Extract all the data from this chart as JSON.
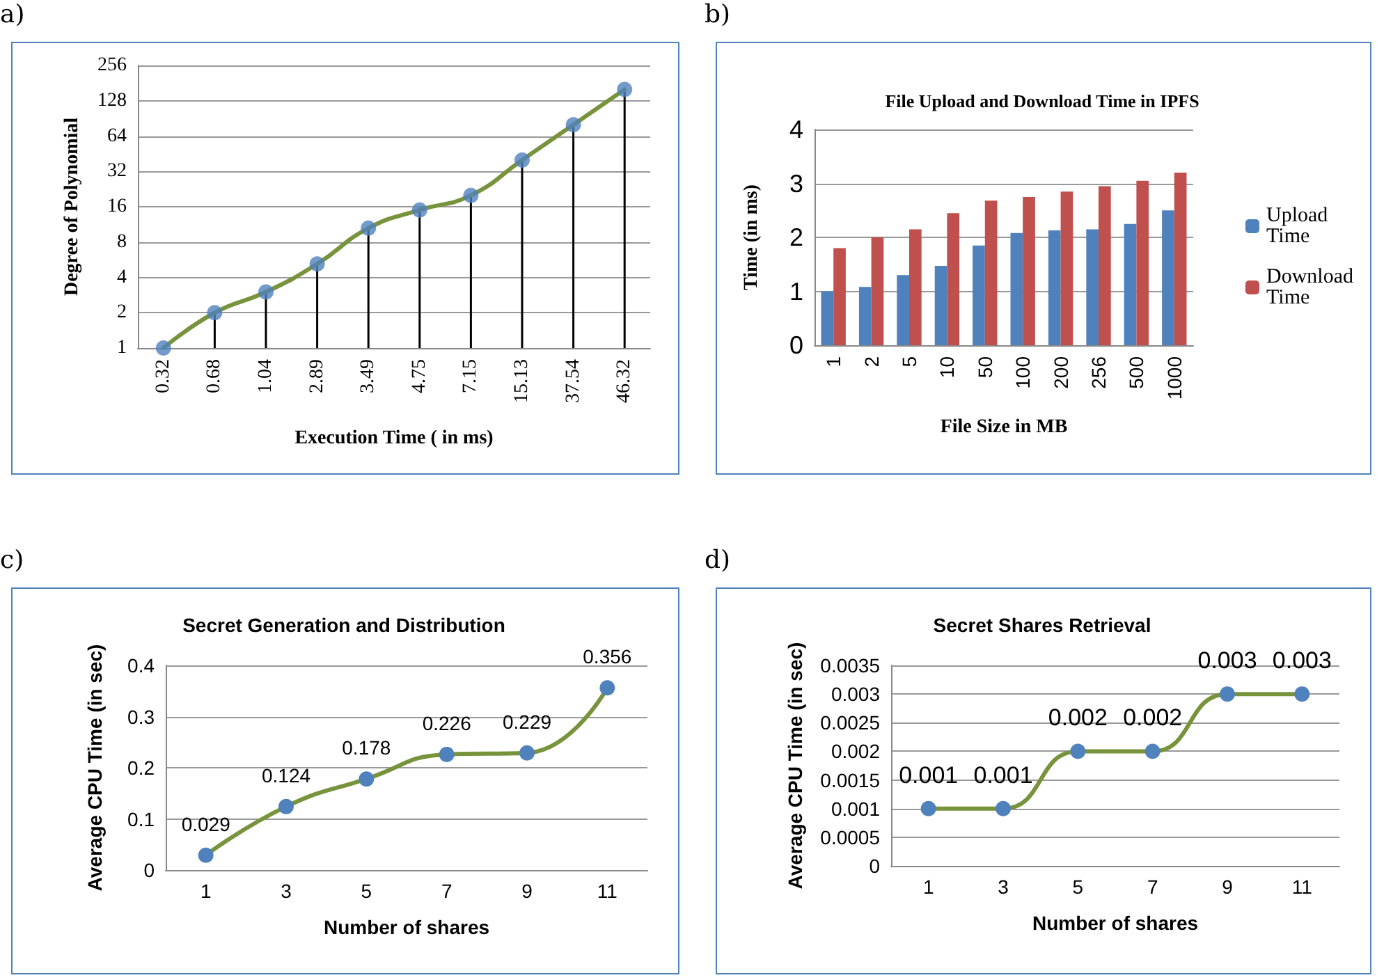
{
  "chart_data": [
    {
      "type": "line",
      "annotations": [
        "a)"
      ],
      "xlabel": "Execution Time ( in ms)",
      "ylabel": "Degree of Polynomial",
      "categories": [
        "0.32",
        "0.68",
        "1.04",
        "2.89",
        "3.49",
        "4.75",
        "7.15",
        "15.13",
        "37.54",
        "46.32"
      ],
      "series": [
        {
          "color": "#77933c",
          "marker": "none",
          "values": [
            1,
            2,
            3,
            5.2,
            10.5,
            15,
            20,
            40,
            80,
            160
          ]
        },
        {
          "type": "lollipop",
          "color": "#000000",
          "colors": [
            "#4f81bd",
            "#4f81bd",
            "#4f81bd",
            "#4f81bd",
            "#4f81bd",
            "#4f81bd",
            "#4f81bd",
            "#4f81bd",
            "#4f81bd",
            "#4f81bd"
          ],
          "values": [
            1,
            2,
            3,
            5.2,
            10.5,
            15,
            20,
            40,
            80,
            160
          ]
        }
      ],
      "log": "y",
      "ylim": [
        1,
        256
      ],
      "yticks": [
        1,
        2,
        4,
        8,
        16,
        32,
        64,
        128,
        256
      ],
      "grid": "y",
      "marker": "circle"
    },
    {
      "type": "bar",
      "annotations": [
        "b)"
      ],
      "title": "File Upload and Download Time in IPFS",
      "xlabel": "File Size in MB",
      "ylabel": "Time (in ms)",
      "categories": [
        "1",
        "2",
        "5",
        "10",
        "50",
        "100",
        "200",
        "256",
        "500",
        "1000"
      ],
      "series": [
        {
          "name": "Upload Time",
          "color": "#4f81bd",
          "values": [
            1.0,
            1.08,
            1.3,
            1.47,
            1.85,
            2.08,
            2.13,
            2.15,
            2.25,
            2.5
          ]
        },
        {
          "name": "Download Time",
          "color": "#c0504d",
          "values": [
            1.8,
            2.0,
            2.15,
            2.45,
            2.68,
            2.75,
            2.85,
            2.95,
            3.05,
            3.2
          ]
        }
      ],
      "ylim": [
        0,
        4
      ],
      "yticks": [
        0,
        1,
        2,
        3,
        4
      ],
      "grid": "y",
      "legend": "right"
    },
    {
      "type": "line",
      "annotations": [
        "c)"
      ],
      "title": "Secret Generation and Distribution",
      "xlabel": "Number of shares",
      "ylabel": "Average CPU Time (in sec)",
      "categories": [
        "1",
        "3",
        "5",
        "7",
        "9",
        "11"
      ],
      "series": [
        {
          "color": "#77933c",
          "colors": [
            "#4f81bd",
            "#4f81bd",
            "#4f81bd",
            "#4f81bd",
            "#4f81bd",
            "#4f81bd"
          ],
          "values": [
            0.029,
            0.124,
            0.178,
            0.226,
            0.229,
            0.356
          ]
        }
      ],
      "ylim": [
        0,
        0.4
      ],
      "yticks": [
        0,
        0.1,
        0.2,
        0.3,
        0.4
      ],
      "grid": "y",
      "marker": "circle",
      "data_labels": true
    },
    {
      "type": "line",
      "annotations": [
        "d)"
      ],
      "title": "Secret Shares Retrieval",
      "xlabel": "Number of shares",
      "ylabel": "Average CPU Time (in sec)",
      "categories": [
        "1",
        "3",
        "5",
        "7",
        "9",
        "11"
      ],
      "series": [
        {
          "color": "#77933c",
          "colors": [
            "#4f81bd",
            "#4f81bd",
            "#4f81bd",
            "#4f81bd",
            "#4f81bd",
            "#4f81bd"
          ],
          "values": [
            0.001,
            0.001,
            0.002,
            0.002,
            0.003,
            0.003
          ]
        }
      ],
      "ylim": [
        0,
        0.0035
      ],
      "yticks": [
        0,
        0.0005,
        0.001,
        0.0015,
        0.002,
        0.0025,
        0.003,
        0.0035
      ],
      "grid": "y",
      "marker": "circle",
      "data_labels": true
    }
  ]
}
